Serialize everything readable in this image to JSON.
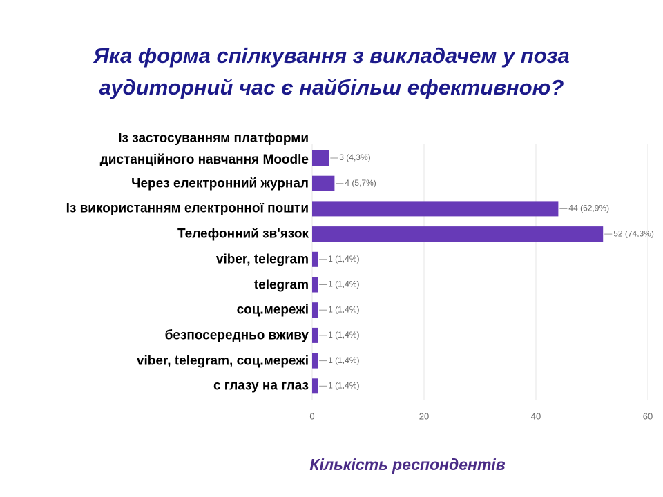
{
  "chart_data": {
    "type": "barh",
    "title": "Яка форма спілкування з викладачем у поза аудиторний час є найбільш ефективною?",
    "x_label": "Кількість респондентів",
    "categories": [
      "Із застосуванням платформи\nдистанційного навчання Moodle",
      "Через електронний журнал",
      "Із використанням електронної пошти",
      "Телефонний зв'язок",
      "viber, telegram",
      "telegram",
      "соц.мережі",
      "безпосередньо вживу",
      "viber, telegram,  соц.мережі",
      "с глазу  на глаз"
    ],
    "values": [
      3,
      4,
      44,
      52,
      1,
      1,
      1,
      1,
      1,
      1
    ],
    "value_labels": [
      "3 (4,3%)",
      "4 (5,7%)",
      "44 (62,9%)",
      "52 (74,3%)",
      "1 (1,4%)",
      "1 (1,4%)",
      "1 (1,4%)",
      "1 (1,4%)",
      "1 (1,4%)",
      "1 (1,4%)"
    ],
    "color": "#673ab7",
    "xlim": [
      0,
      60
    ],
    "xticks": [
      0,
      20,
      40,
      60
    ],
    "grid": true
  }
}
